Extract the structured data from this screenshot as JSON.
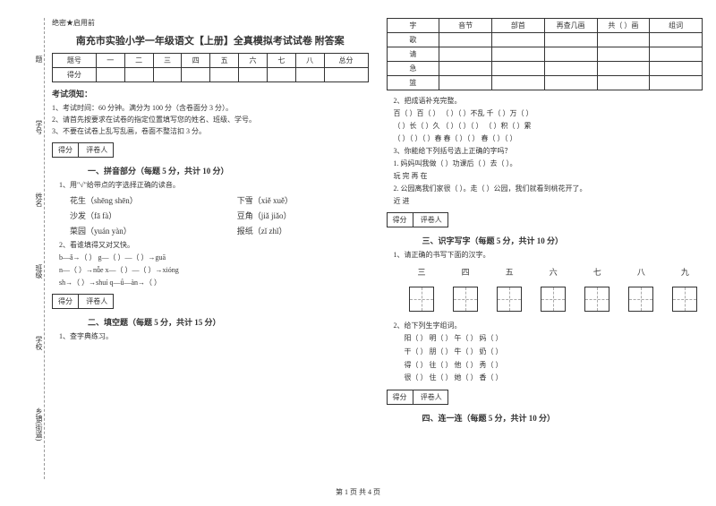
{
  "binding": {
    "items": [
      "题",
      "学号",
      "姓名",
      "班级",
      "学校",
      "乡镇(街道)"
    ],
    "marks": [
      "答",
      "客",
      "不",
      "内",
      "线",
      "封",
      "密"
    ]
  },
  "header_tag": "绝密★启用前",
  "title": "南充市实验小学一年级语文【上册】全真模拟考试试卷 附答案",
  "score_table": {
    "cols": [
      "题号",
      "一",
      "二",
      "三",
      "四",
      "五",
      "六",
      "七",
      "八",
      "总分"
    ],
    "row2": "得分"
  },
  "notice": {
    "title": "考试须知：",
    "items": [
      "1、考试时间：60 分钟。满分为 100 分（含卷面分 3 分）。",
      "2、请首先按要求在试卷的指定位置填写您的姓名、班级、学号。",
      "3、不要在试卷上乱写乱画，卷面不整洁扣 3 分。"
    ]
  },
  "score_labels": {
    "a": "得分",
    "b": "评卷人"
  },
  "sec1": {
    "title": "一、拼音部分（每题 5 分，共计 10 分）",
    "q1": "1、用\"√\"给带点的字选择正确的读音。",
    "rows": [
      {
        "l": "花生（shēng    shēn）",
        "r": "下雪（xiě    xuě）"
      },
      {
        "l": "沙发（fā    fà）",
        "r": "豆角（jiǎ    jiǎo）"
      },
      {
        "l": "菜园（yuán    yàn）",
        "r": "报纸（zǐ    zhǐ）"
      }
    ],
    "q2": "2、看谁填得又对又快。",
    "fills": [
      "b—ǎ→（    ）        g—（    ）—（    ）→guā",
      "n—（    ）→nǚe        x—（    ）—（    ）→xióng",
      "sh→（    ）→shuí        q—ǘ—àn→（    ）"
    ]
  },
  "sec2": {
    "title": "二、填空题（每题 5 分，共计 15 分）",
    "q1": "1、查字典练习。"
  },
  "char_table": {
    "headers": [
      "字",
      "音节",
      "部首",
      "再查几画",
      "共（  ）画",
      "组词"
    ],
    "rows": [
      "歌",
      "请",
      "急",
      "篮"
    ]
  },
  "q2_2": {
    "title": "2、把成语补充完整。",
    "lines": [
      "百（  ）百（  ）    （  ）（  ）不乱    千（  ）万（  ）",
      "（  ）长（  ）久    （  ）（  ）（  ）    （  ）积（  ）累",
      "（  ）（  ）（  ）春    春（  ）（  ）    春（  ）（  ）"
    ]
  },
  "q3": {
    "title": "3、你能给下列括号选上正确的字吗？",
    "lines": [
      "1. 妈妈叫我做（    ）功课后（    ）去（    ）。",
      "    玩    完    再    在",
      "2. 公园离我们家很（    ）。走（    ）公园，我们就看到桃花开了。",
      "    近    进"
    ]
  },
  "sec3": {
    "title": "三、识字写字（每题 5 分，共计 10 分）",
    "q1": "1、请正确的书写下面的汉字。",
    "chars": [
      "三",
      "四",
      "五",
      "六",
      "七",
      "八",
      "九"
    ],
    "q2": "2、给下列生字组词。",
    "word_lines": [
      "阳（    ）    明（    ）    午（    ）    妈（    ）",
      "干（    ）    朋（    ）    牛（    ）    奶（    ）",
      "得（    ）    往（    ）    他（    ）    秀（    ）",
      "很（    ）    住（    ）    她（    ）    香（    ）"
    ]
  },
  "sec4": {
    "title": "四、连一连（每题 5 分，共计 10 分）"
  },
  "footer": "第 1 页 共 4 页"
}
